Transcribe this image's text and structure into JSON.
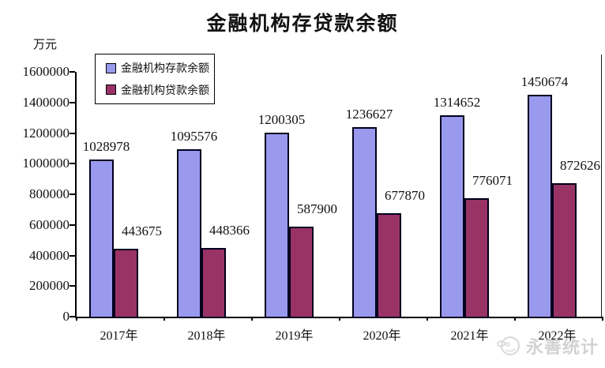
{
  "chart_data": {
    "type": "bar",
    "title": "金融机构存贷款余额",
    "ylabel": "万元",
    "xlabel": "",
    "categories": [
      "2017年",
      "2018年",
      "2019年",
      "2020年",
      "2021年",
      "2022年"
    ],
    "series": [
      {
        "name": "金融机构存款余额",
        "color": "#9999ee",
        "values": [
          1028978,
          1095576,
          1200305,
          1236627,
          1314652,
          1450674
        ]
      },
      {
        "name": "金融机构贷款余额",
        "color": "#993366",
        "values": [
          443675,
          448366,
          587900,
          677870,
          776071,
          872626
        ]
      }
    ],
    "ylim": [
      0,
      1600000
    ],
    "ytick_interval": 200000,
    "yticks": [
      "1600000",
      "1400000",
      "1200000",
      "1000000",
      "800000",
      "600000",
      "400000",
      "200000",
      "0"
    ],
    "grid": false,
    "legend_position": "inside-top-left",
    "data_labels": true,
    "bar_border_color": "#00001e"
  },
  "watermark": {
    "text": "永善统计"
  }
}
